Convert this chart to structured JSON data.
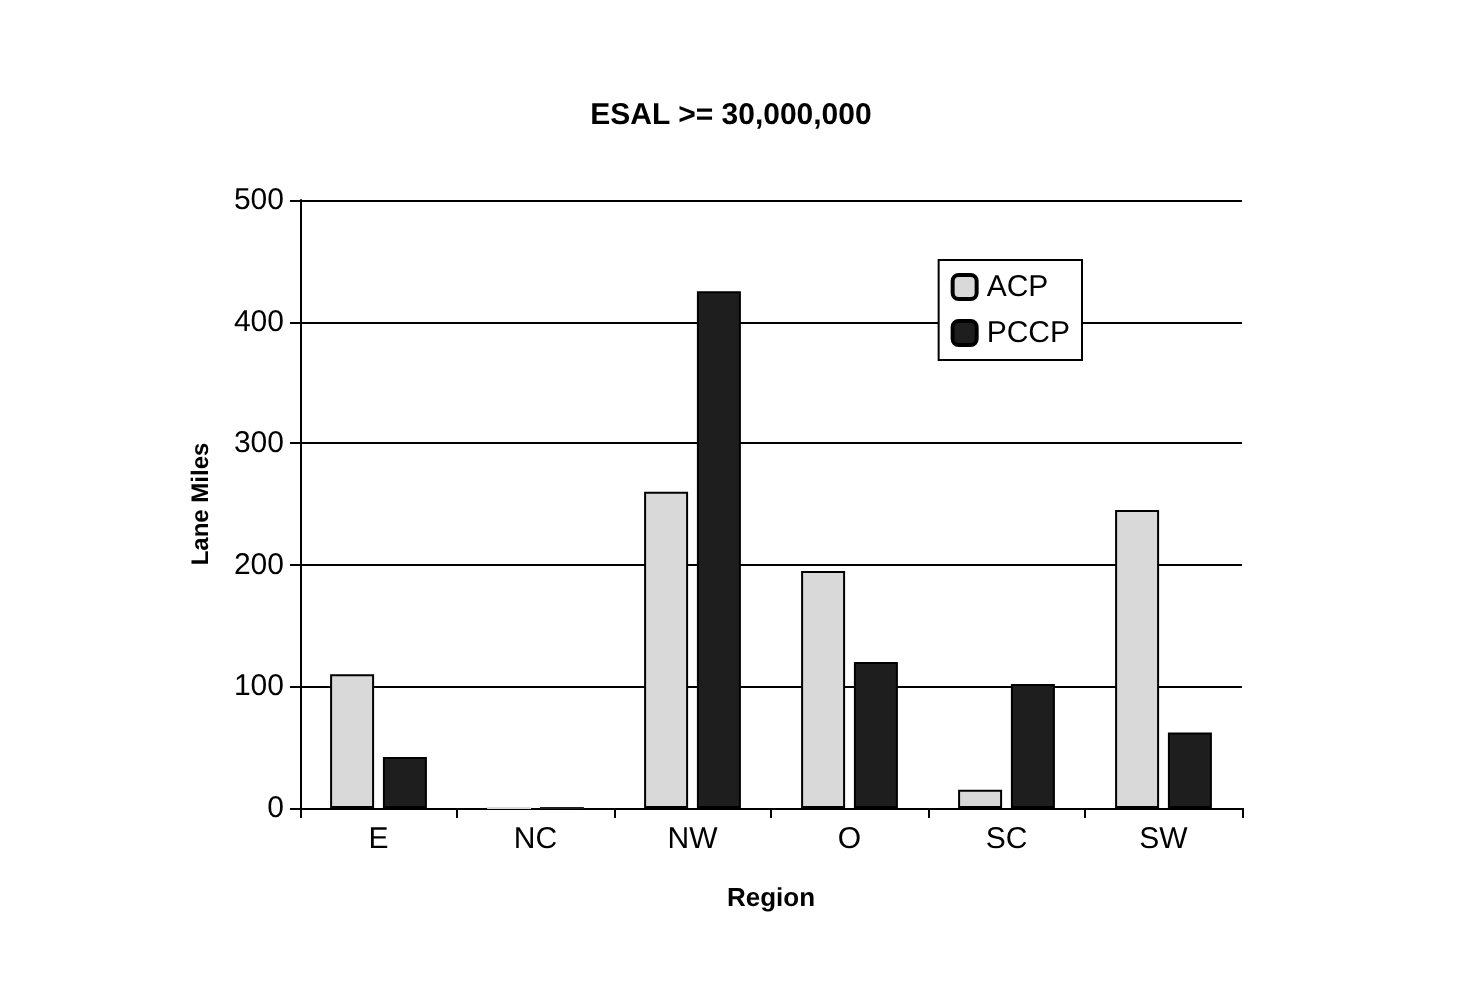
{
  "chart_data": {
    "type": "bar",
    "title": "ESAL >= 30,000,000",
    "xlabel": "Region",
    "ylabel": "Lane Miles",
    "categories": [
      "E",
      "NC",
      "NW",
      "O",
      "SC",
      "SW"
    ],
    "series": [
      {
        "name": "ACP",
        "color": "#d9d9d9",
        "values": [
          110,
          0,
          260,
          195,
          15,
          245
        ]
      },
      {
        "name": "PCCP",
        "color": "#1e1e1e",
        "values": [
          42,
          0,
          425,
          120,
          102,
          62
        ]
      }
    ],
    "ylim": [
      0,
      500
    ],
    "yticks": [
      0,
      100,
      200,
      300,
      400,
      500
    ],
    "grid": "y",
    "legend": "top right"
  }
}
